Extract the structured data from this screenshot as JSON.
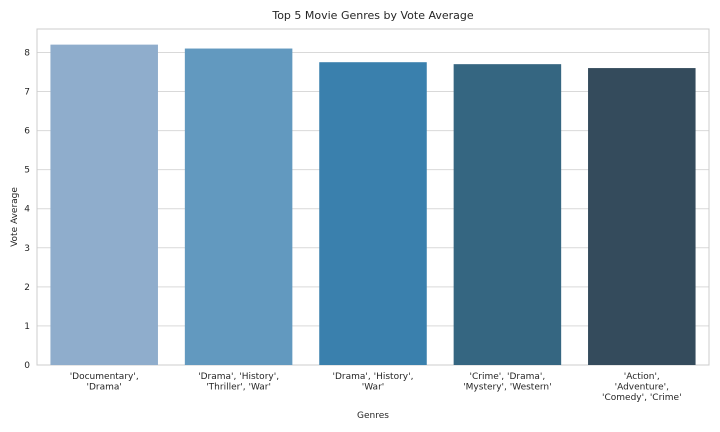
{
  "chart_data": {
    "type": "bar",
    "title": "Top 5 Movie Genres by Vote Average",
    "xlabel": "Genres",
    "ylabel": "Vote Average",
    "categories": [
      "'Documentary',\n'Drama'",
      "'Drama', 'History',\n'Thriller', 'War'",
      "'Drama', 'History',\n'War'",
      "'Crime', 'Drama',\n'Mystery', 'Western'",
      "'Action',\n'Adventure',\n'Comedy', 'Crime'"
    ],
    "values": [
      8.2,
      8.1,
      7.75,
      7.7,
      7.6
    ],
    "colors": [
      "#8fadcc",
      "#6299bf",
      "#3a80ad",
      "#356681",
      "#344b5c"
    ],
    "ylim": [
      0,
      8.6
    ],
    "yticks": [
      0,
      1,
      2,
      3,
      4,
      5,
      6,
      7,
      8
    ],
    "grid": true,
    "legend": "none"
  }
}
